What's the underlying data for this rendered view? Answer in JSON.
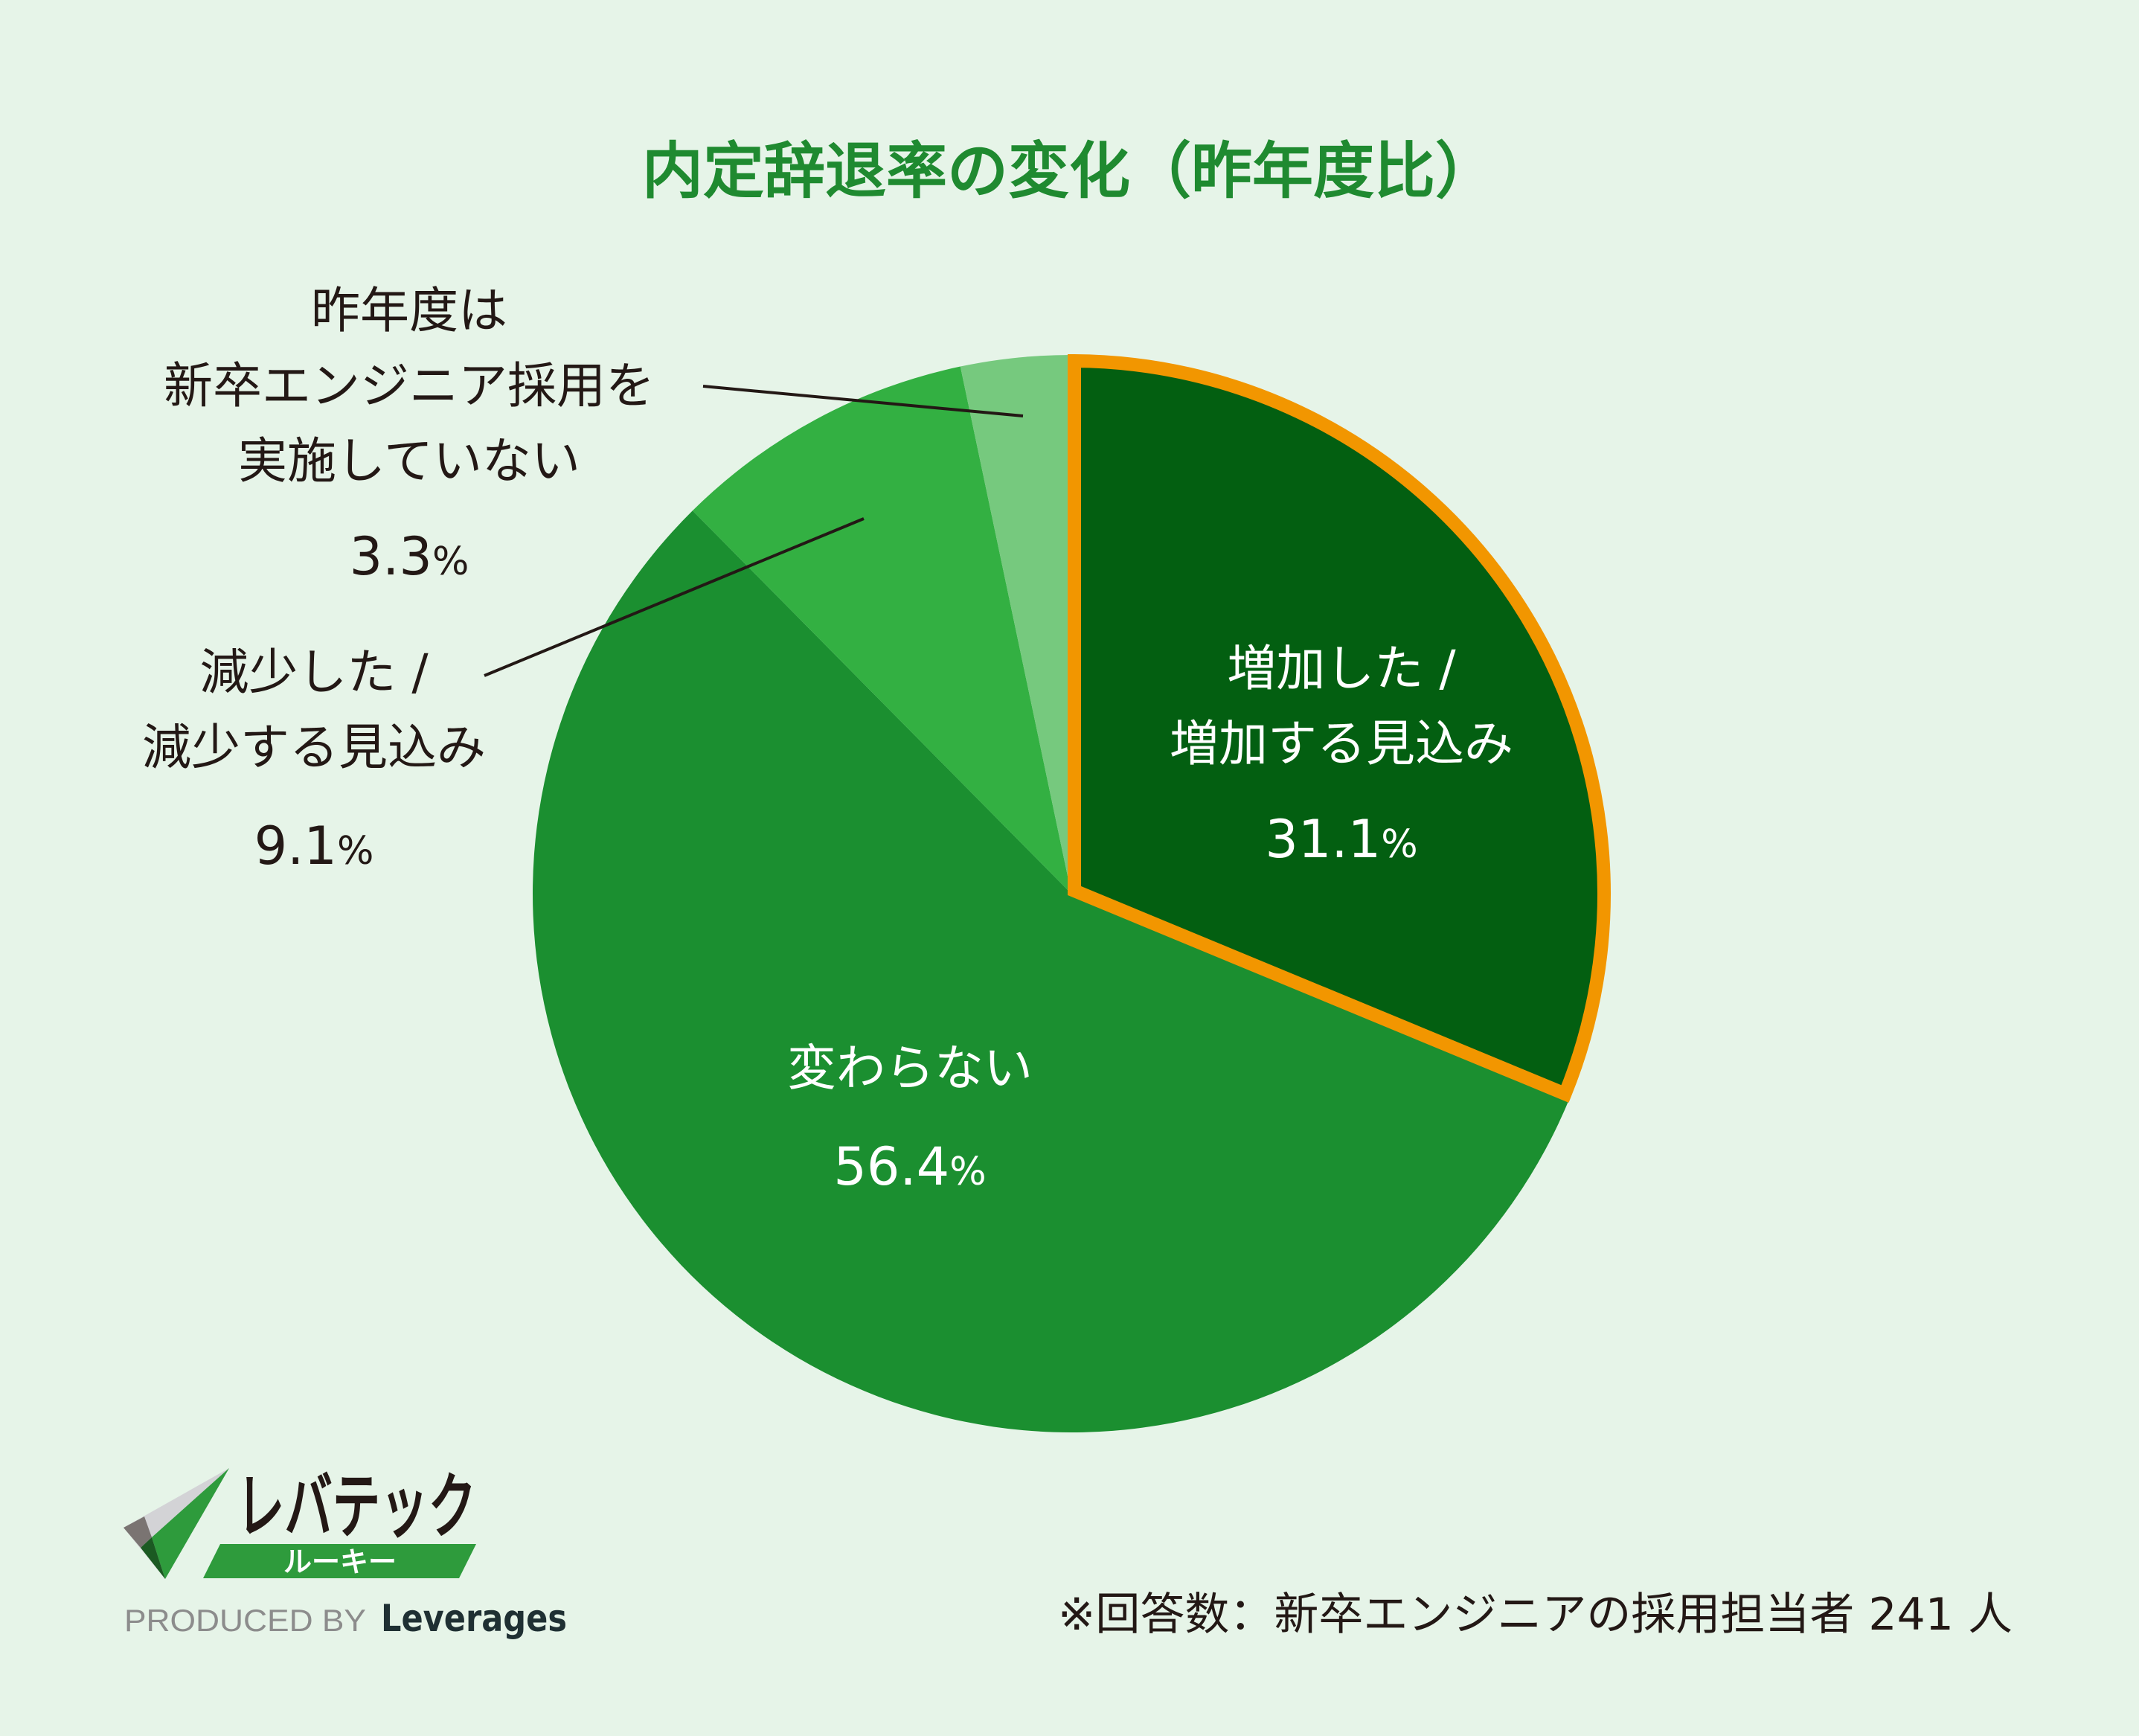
{
  "chart_data": {
    "type": "pie",
    "title": "内定辞退率の変化（昨年度比）",
    "unit": "%",
    "slices": [
      {
        "label_lines": [
          "増加した /",
          "増加する見込み"
        ],
        "value": 31.1,
        "value_text": "31.1",
        "color": "#035f11",
        "highlight": "#f29600"
      },
      {
        "label_lines": [
          "変わらない"
        ],
        "value": 56.4,
        "value_text": "56.4",
        "color": "#1b8f30"
      },
      {
        "label_lines": [
          "減少した /",
          "減少する見込み"
        ],
        "value": 9.1,
        "value_text": "9.1",
        "color": "#33b042"
      },
      {
        "label_lines": [
          "昨年度は",
          "新卒エンジニア採用を",
          "実施していない"
        ],
        "value": 3.3,
        "value_text": "3.3",
        "color": "#76c97e"
      }
    ],
    "start": "top",
    "direction": "clockwise"
  },
  "footnote": "※回答数：新卒エンジニアの採用担当者 241 人",
  "logo": {
    "name": "レバテック",
    "sub": "ルーキー",
    "produced_by": "PRODUCED BY",
    "company": "Leverages"
  }
}
